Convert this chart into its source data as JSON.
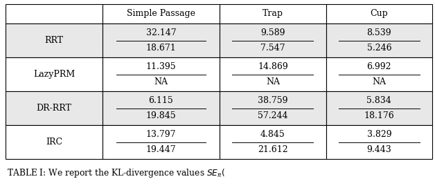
{
  "col_headers": [
    "Simple Passage",
    "Trap",
    "Cup"
  ],
  "row_labels": [
    "RRT",
    "LazyPRM",
    "DR-RRT",
    "IRC"
  ],
  "cell_data": [
    [
      [
        "32.147",
        "18.671"
      ],
      [
        "9.589",
        "7.547"
      ],
      [
        "8.539",
        "5.246"
      ]
    ],
    [
      [
        "11.395",
        "NA"
      ],
      [
        "14.869",
        "NA"
      ],
      [
        "6.992",
        "NA"
      ]
    ],
    [
      [
        "6.115",
        "19.845"
      ],
      [
        "38.759",
        "57.244"
      ],
      [
        "5.834",
        "18.176"
      ]
    ],
    [
      [
        "13.797",
        "19.447"
      ],
      [
        "4.845",
        "21.612"
      ],
      [
        "3.829",
        "9.443"
      ]
    ]
  ],
  "caption": "TABLE I: We report the KL-divergence values $SE_{\\pi}($",
  "bg_color_header": "#ffffff",
  "bg_color_row_odd": "#e8e8e8",
  "bg_color_row_even": "#ffffff",
  "text_color": "#000000",
  "border_color": "#000000",
  "font_size": 9.0,
  "header_font_size": 9.0,
  "caption_font_size": 8.8,
  "fig_width": 6.28,
  "fig_height": 2.72,
  "dpi": 100
}
